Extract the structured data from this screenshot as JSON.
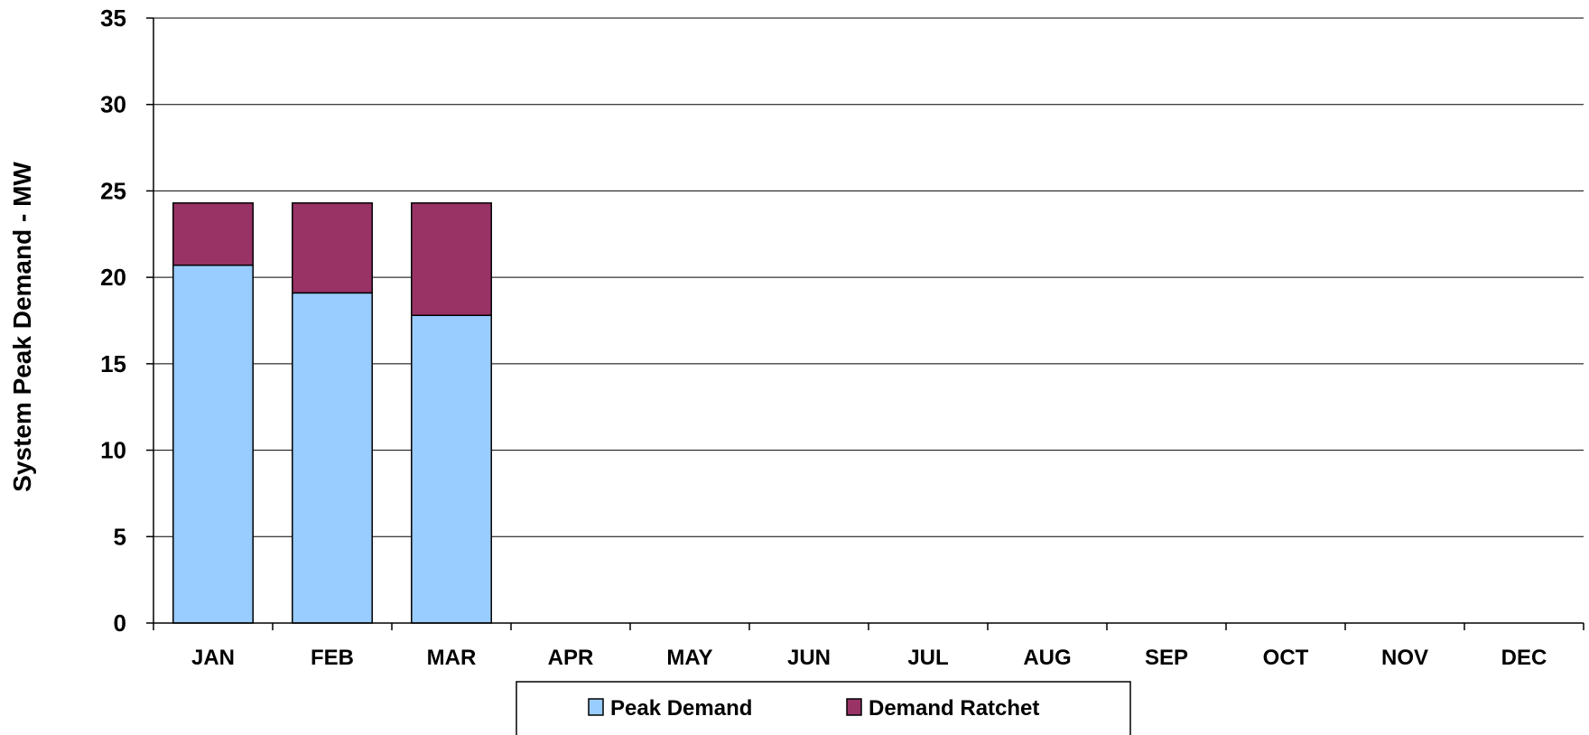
{
  "chart_data": {
    "type": "bar",
    "stacked": true,
    "categories": [
      "JAN",
      "FEB",
      "MAR",
      "APR",
      "MAY",
      "JUN",
      "JUL",
      "AUG",
      "SEP",
      "OCT",
      "NOV",
      "DEC"
    ],
    "series": [
      {
        "name": "Peak Demand",
        "color": "#99ccff",
        "values": [
          20.7,
          19.1,
          17.8,
          null,
          null,
          null,
          null,
          null,
          null,
          null,
          null,
          null
        ]
      },
      {
        "name": "Demand Ratchet",
        "color": "#993366",
        "values": [
          3.6,
          5.2,
          6.5,
          null,
          null,
          null,
          null,
          null,
          null,
          null,
          null,
          null
        ]
      }
    ],
    "title": "",
    "xlabel": "",
    "ylabel": "System Peak Demand - MW",
    "ylim": [
      0,
      35
    ],
    "yticks": [
      0,
      5,
      10,
      15,
      20,
      25,
      30,
      35
    ],
    "grid": true,
    "legend": "bottom"
  }
}
